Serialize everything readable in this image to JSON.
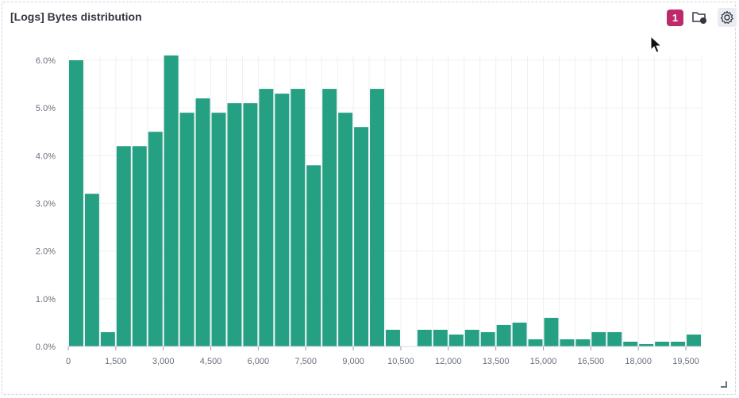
{
  "panel": {
    "title": "[Logs] Bytes distribution",
    "badge_count": "1",
    "icons": [
      "folder-info-icon",
      "gear-icon"
    ],
    "accent_color": "#bd2a6a"
  },
  "chart_data": {
    "type": "bar",
    "bar_color": "#25a082",
    "bin_width": 500,
    "x": [
      0,
      500,
      1000,
      1500,
      2000,
      2500,
      3000,
      3500,
      4000,
      4500,
      5000,
      5500,
      6000,
      6500,
      7000,
      7500,
      8000,
      8500,
      9000,
      9500,
      10000,
      10500,
      11000,
      11500,
      12000,
      12500,
      13000,
      13500,
      14000,
      14500,
      15000,
      15500,
      16000,
      16500,
      17000,
      17500,
      18000,
      18500,
      19000,
      19500
    ],
    "values": [
      6.0,
      3.2,
      0.3,
      4.2,
      4.2,
      4.5,
      6.1,
      4.9,
      5.2,
      4.9,
      5.1,
      5.1,
      5.4,
      5.3,
      5.4,
      3.8,
      5.4,
      4.9,
      4.6,
      5.4,
      0.35,
      0,
      0.35,
      0.35,
      0.25,
      0.35,
      0.3,
      0.45,
      0.5,
      0.15,
      0.6,
      0.15,
      0.15,
      0.3,
      0.3,
      0.1,
      0.05,
      0.1,
      0.1,
      0.25
    ],
    "xlim": [
      0,
      20000
    ],
    "ylim": [
      0,
      6.0
    ],
    "x_ticks": [
      0,
      1500,
      3000,
      4500,
      6000,
      7500,
      9000,
      10500,
      12000,
      13500,
      15000,
      16500,
      18000,
      19500
    ],
    "x_tick_labels": [
      "0",
      "1,500",
      "3,000",
      "4,500",
      "6,000",
      "7,500",
      "9,000",
      "10,500",
      "12,000",
      "13,500",
      "15,000",
      "16,500",
      "18,000",
      "19,500"
    ],
    "y_ticks": [
      0,
      1,
      2,
      3,
      4,
      5,
      6
    ],
    "y_tick_labels": [
      "0.0%",
      "1.0%",
      "2.0%",
      "3.0%",
      "4.0%",
      "5.0%",
      "6.0%"
    ],
    "grid": true,
    "title": "",
    "xlabel": "",
    "ylabel": ""
  }
}
